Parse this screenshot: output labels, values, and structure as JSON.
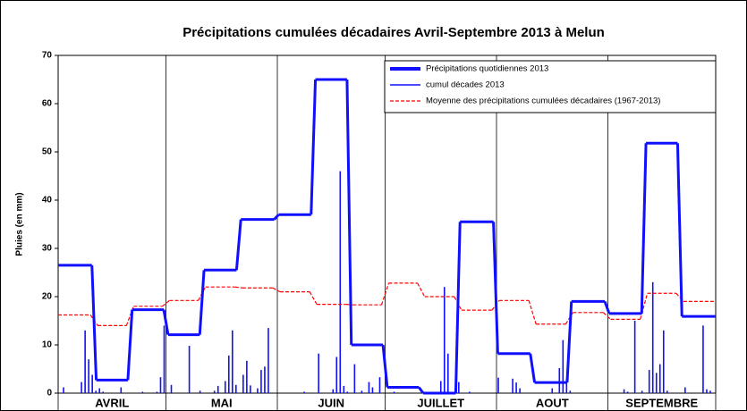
{
  "chart_data": {
    "type": "decade-rain",
    "title": "Précipitations cumulées décadaires Avril-Septembre 2013 à Melun",
    "ylabel": "Pluies (en mm)",
    "ylim": [
      0,
      70
    ],
    "yticks": [
      0,
      10,
      20,
      30,
      40,
      50,
      60,
      70
    ],
    "xlim": [
      0,
      183
    ],
    "xticks": [
      0,
      30,
      61,
      91,
      122,
      153,
      183
    ],
    "months": [
      "AVRIL",
      "MAI",
      "JUIN",
      "JUILLET",
      "AOUT",
      "SEPTEMBRE"
    ],
    "x": [
      5,
      15,
      25,
      35,
      45,
      55.5,
      66,
      76,
      86,
      96,
      106,
      116.5,
      127,
      137,
      147.5,
      158,
      168,
      178
    ],
    "legend": "top-right",
    "series": [
      {
        "name": "Précipitations quotidiennes 2013",
        "color": "#1010ff",
        "style": "step",
        "values": [
          26.5,
          2.7,
          17.3,
          12.1,
          25.5,
          36,
          37,
          65,
          10,
          1.2,
          0,
          35.5,
          8.2,
          2.2,
          19,
          16.5,
          51.8,
          15.9
        ]
      },
      {
        "name": "cumul décades 2013",
        "color": "#1010ff",
        "style": "bars",
        "x": [
          1,
          6,
          7,
          8,
          9,
          10,
          11,
          12,
          17,
          23,
          27,
          28,
          29,
          31,
          36,
          39,
          43,
          44,
          46,
          47,
          48,
          49,
          51,
          52,
          53,
          55,
          56,
          57,
          58,
          68,
          72,
          76,
          77,
          78,
          79,
          80,
          82,
          84,
          86,
          87,
          89,
          93,
          106,
          107,
          108,
          110,
          111,
          114,
          122,
          126,
          127,
          128,
          137,
          139,
          140,
          141,
          142,
          157,
          158,
          160,
          162,
          164,
          165,
          166,
          167,
          168,
          169,
          174,
          179,
          180,
          181
        ],
        "values": [
          1.2,
          2.3,
          13,
          7,
          3.8,
          0.5,
          1,
          0.3,
          1.2,
          0.3,
          0.3,
          3.3,
          14,
          1.7,
          9.8,
          0.5,
          0.5,
          1.5,
          2.5,
          7.8,
          13,
          1.7,
          3.8,
          6.7,
          1.6,
          1,
          4.8,
          5.5,
          13.5,
          0.3,
          8.2,
          0.8,
          7.5,
          46,
          1.5,
          0.3,
          6,
          0.5,
          2.3,
          1.2,
          3.3,
          0.3,
          2.5,
          22,
          8.2,
          1,
          2.3,
          0.3,
          3.2,
          3,
          2.2,
          1,
          1,
          5.2,
          11,
          3,
          0.5,
          0.8,
          0.3,
          15,
          0.5,
          4.8,
          23,
          4.2,
          6,
          13,
          0.5,
          1.2,
          14,
          0.8,
          0.5
        ]
      },
      {
        "name": "Moyenne des précipitations cumulées décadaires (1967-2013)",
        "color": "#ff0000",
        "style": "dashed-step",
        "values": [
          16.2,
          14.0,
          18.0,
          19.2,
          22.0,
          21.8,
          21.0,
          18.4,
          18.3,
          22.8,
          20.0,
          17.2,
          19.2,
          14.3,
          16.7,
          15.3,
          20.7,
          19.0
        ]
      }
    ]
  }
}
